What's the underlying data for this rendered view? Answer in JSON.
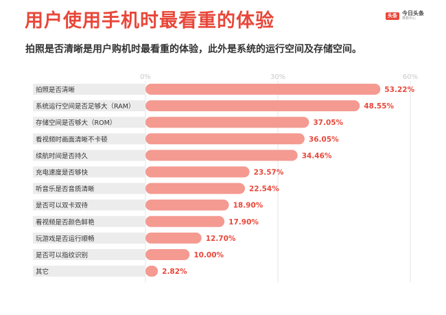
{
  "header": {
    "title": "用户使用手机时最看重的体验",
    "subtitle": "拍照是否清晰是用户购机时最看重的体验，此外是系统的运行空间及存储空间。"
  },
  "logo": {
    "badge": "头条",
    "name": "今日头条",
    "sub": "算数中心"
  },
  "colors": {
    "title": "#e8473a",
    "bar": "#f49a91",
    "label_band": "#ececec",
    "value_text": "#e8473a",
    "tick_text": "#c8c8c8"
  },
  "chart_data": {
    "type": "bar",
    "orientation": "horizontal",
    "categories": [
      "拍照是否清晰",
      "系统运行空间是否足够大（RAM）",
      "存储空间是否够大（ROM）",
      "看视频时画面清晰不卡顿",
      "续航时间是否持久",
      "充电速度是否够快",
      "听音乐是否音质清晰",
      "是否可以双卡双待",
      "看视频是否颜色鲜艳",
      "玩游戏是否运行顺畅",
      "是否可以指纹识别",
      "其它"
    ],
    "values": [
      53.22,
      48.55,
      37.05,
      36.05,
      34.46,
      23.57,
      22.54,
      18.9,
      17.9,
      12.7,
      10.0,
      2.82
    ],
    "value_labels": [
      "53.22%",
      "48.55%",
      "37.05%",
      "36.05%",
      "34.46%",
      "23.57%",
      "22.54%",
      "18.90%",
      "17.90%",
      "12.70%",
      "10.00%",
      "2.82%"
    ],
    "ticks": [
      0,
      30,
      60
    ],
    "tick_labels": [
      "0%",
      "30%",
      "60%"
    ],
    "xlim": [
      0,
      60
    ],
    "grid": true
  }
}
